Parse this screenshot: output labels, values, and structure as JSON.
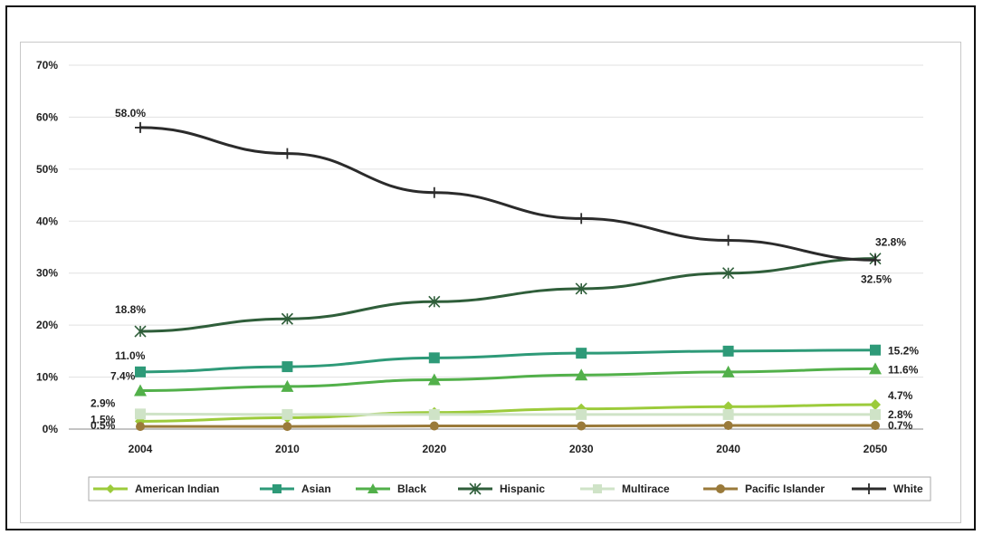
{
  "chart_data": {
    "type": "line",
    "x": [
      "2004",
      "2010",
      "2020",
      "2030",
      "2040",
      "2050"
    ],
    "ylim": [
      0,
      70
    ],
    "y_ticks": [
      "0%",
      "10%",
      "20%",
      "30%",
      "40%",
      "50%",
      "60%",
      "70%"
    ],
    "grid": true,
    "legend_position": "bottom",
    "series": [
      {
        "name": "American Indian",
        "color": "#9ccb3b",
        "marker": "diamond",
        "values": [
          1.5,
          2.2,
          3.2,
          3.9,
          4.3,
          4.7
        ]
      },
      {
        "name": "Asian",
        "color": "#2e9a78",
        "marker": "square",
        "values": [
          11.0,
          12.0,
          13.7,
          14.6,
          15.0,
          15.2
        ]
      },
      {
        "name": "Black",
        "color": "#52b04a",
        "marker": "triangle",
        "values": [
          7.4,
          8.2,
          9.5,
          10.4,
          11.0,
          11.6
        ]
      },
      {
        "name": "Hispanic",
        "color": "#2f5e3a",
        "marker": "xplus",
        "values": [
          18.8,
          21.2,
          24.5,
          27.0,
          30.0,
          32.8
        ]
      },
      {
        "name": "Multirace",
        "color": "#cfe3c7",
        "marker": "square",
        "values": [
          2.9,
          2.8,
          2.8,
          2.8,
          2.8,
          2.8
        ]
      },
      {
        "name": "Pacific Islander",
        "color": "#9a7a3a",
        "marker": "circle",
        "values": [
          0.5,
          0.5,
          0.6,
          0.6,
          0.7,
          0.7
        ]
      },
      {
        "name": "White",
        "color": "#2b2b2b",
        "marker": "plus",
        "values": [
          58.0,
          53.0,
          45.5,
          40.5,
          36.3,
          32.5
        ]
      }
    ],
    "data_labels": [
      {
        "text": "58.0%",
        "series": "White",
        "index": 0
      },
      {
        "text": "18.8%",
        "series": "Hispanic",
        "index": 0
      },
      {
        "text": "11.0%",
        "series": "Asian",
        "index": 0
      },
      {
        "text": "7.4%",
        "series": "Black",
        "index": 0
      },
      {
        "text": "2.9%",
        "series": "Multirace",
        "index": 0
      },
      {
        "text": "1.5%",
        "series": "American Indian",
        "index": 0
      },
      {
        "text": "0.5%",
        "series": "Pacific Islander",
        "index": 0
      },
      {
        "text": "32.8%",
        "series": "Hispanic",
        "index": 5
      },
      {
        "text": "32.5%",
        "series": "White",
        "index": 5
      },
      {
        "text": "15.2%",
        "series": "Asian",
        "index": 5
      },
      {
        "text": "11.6%",
        "series": "Black",
        "index": 5
      },
      {
        "text": "4.7%",
        "series": "American Indian",
        "index": 5
      },
      {
        "text": "2.8%",
        "series": "Multirace",
        "index": 5
      },
      {
        "text": "0.7%",
        "series": "Pacific Islander",
        "index": 5
      }
    ]
  }
}
